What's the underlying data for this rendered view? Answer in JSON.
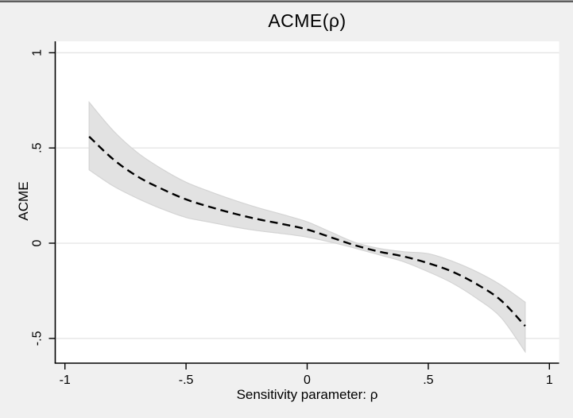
{
  "window": {
    "top_border": true
  },
  "chart_data": {
    "type": "line",
    "title": "ACME(ρ)",
    "xlabel": "Sensitivity parameter: ρ",
    "ylabel": "ACME",
    "xlim": [
      -1.04,
      1.04
    ],
    "ylim": [
      -0.63,
      1.06
    ],
    "grid": true,
    "legend": "none",
    "xticks": {
      "values": [
        -1,
        -0.5,
        0,
        0.5,
        1
      ],
      "labels": [
        "-1",
        "-.5",
        "0",
        ".5",
        "1"
      ]
    },
    "yticks": {
      "values": [
        -0.5,
        0,
        0.5,
        1
      ],
      "labels": [
        "-.5",
        "0",
        ".5",
        "1"
      ]
    },
    "x": [
      -0.9,
      -0.8,
      -0.7,
      -0.6,
      -0.5,
      -0.4,
      -0.3,
      -0.2,
      -0.1,
      0.0,
      0.1,
      0.2,
      0.3,
      0.4,
      0.5,
      0.6,
      0.7,
      0.8,
      0.9
    ],
    "series": [
      {
        "name": "ACME point estimate (dashed)",
        "style": "dashed",
        "values": [
          0.56,
          0.44,
          0.35,
          0.285,
          0.23,
          0.19,
          0.155,
          0.125,
          0.1,
          0.072,
          0.03,
          -0.012,
          -0.045,
          -0.07,
          -0.105,
          -0.15,
          -0.215,
          -0.3,
          -0.435
        ]
      },
      {
        "name": "confidence band upper",
        "style": "band-edge",
        "values": [
          0.74,
          0.59,
          0.475,
          0.39,
          0.32,
          0.27,
          0.225,
          0.185,
          0.15,
          0.112,
          0.057,
          0.003,
          -0.028,
          -0.045,
          -0.055,
          -0.095,
          -0.15,
          -0.22,
          -0.31
        ]
      },
      {
        "name": "confidence band lower",
        "style": "band-edge",
        "values": [
          0.385,
          0.3,
          0.235,
          0.18,
          0.135,
          0.11,
          0.085,
          0.065,
          0.05,
          0.032,
          0.005,
          -0.027,
          -0.062,
          -0.098,
          -0.15,
          -0.21,
          -0.29,
          -0.39,
          -0.57
        ]
      }
    ],
    "colors": {
      "outer_bg": "#f0f0f0",
      "plot_bg": "#ffffff",
      "grid": "#e6e6e6",
      "axis": "#000000",
      "line": "#000000",
      "band_fill": "#e2e2e2",
      "band_edge": "#d4d4d4"
    }
  }
}
